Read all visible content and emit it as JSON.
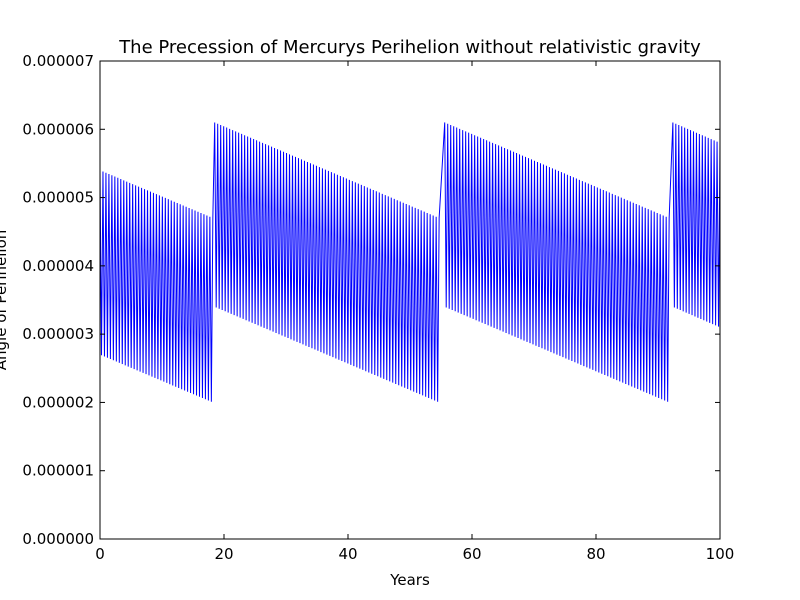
{
  "chart_data": {
    "type": "line",
    "title": "The Precession of Mercurys Perihelion without relativistic gravity",
    "xlabel": "Years",
    "ylabel": "Angle of Perihelion",
    "xlim": [
      0,
      100
    ],
    "ylim": [
      0,
      7e-06
    ],
    "xticks": [
      0,
      20,
      40,
      60,
      80,
      100
    ],
    "xtick_labels": [
      "0",
      "20",
      "40",
      "60",
      "80",
      "100"
    ],
    "yticks": [
      0,
      1e-06,
      2e-06,
      3e-06,
      4e-06,
      5e-06,
      6e-06,
      7e-06
    ],
    "ytick_labels": [
      "0.000000",
      "0.000001",
      "0.000002",
      "0.000003",
      "0.000004",
      "0.000005",
      "0.000006",
      "0.000007"
    ],
    "grid": false,
    "legend": false,
    "line_color": "#0000ff",
    "series": [
      {
        "oscillation_period_years": 0.48,
        "segments": [
          {
            "x_start": 0.0,
            "x_end": 18.2,
            "upper_start": 5.4e-06,
            "upper_end": 4.7e-06,
            "lower_start": 2.7e-06,
            "lower_end": 2e-06
          },
          {
            "x_start": 18.5,
            "x_end": 54.7,
            "upper_start": 6.1e-06,
            "upper_end": 4.7e-06,
            "lower_start": 3.4e-06,
            "lower_end": 2e-06
          },
          {
            "x_start": 55.6,
            "x_end": 91.8,
            "upper_start": 6.1e-06,
            "upper_end": 4.7e-06,
            "lower_start": 3.4e-06,
            "lower_end": 2e-06
          },
          {
            "x_start": 92.4,
            "x_end": 100.0,
            "upper_start": 6.1e-06,
            "upper_end": 5.8e-06,
            "lower_start": 3.4e-06,
            "lower_end": 3.1e-06
          }
        ]
      }
    ]
  }
}
